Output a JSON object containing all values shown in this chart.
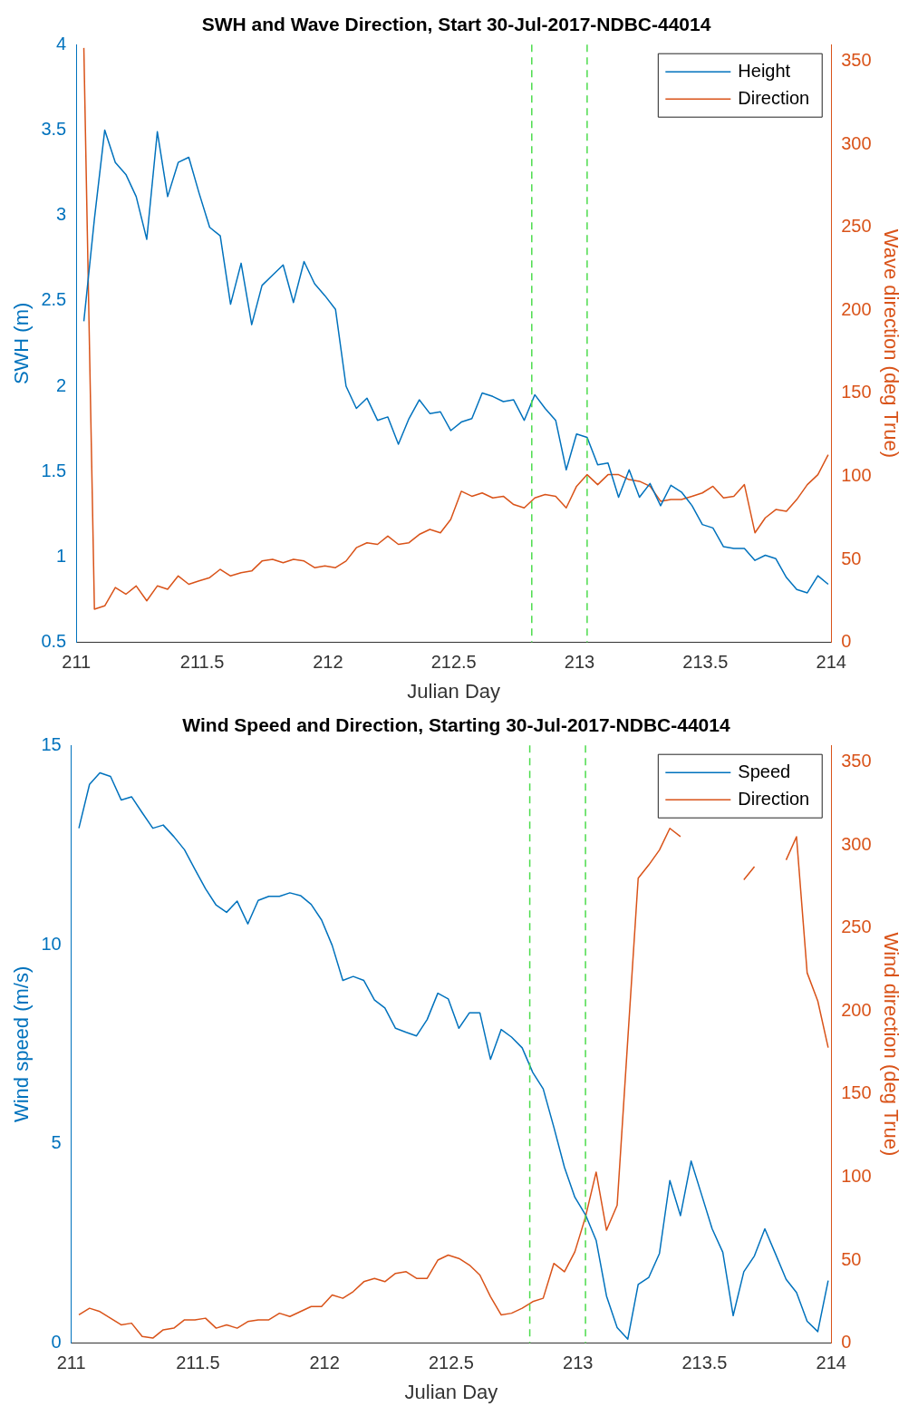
{
  "chart_data": [
    {
      "type": "line",
      "title": "SWH and Wave Direction, Start 30-Jul-2017-NDBC-44014",
      "xlabel": "Julian Day",
      "ylabel": "SWH (m)",
      "y2label": "Wave direction (deg True)",
      "x": [
        211.03,
        211.072,
        211.113,
        211.155,
        211.197,
        211.238,
        211.28,
        211.322,
        211.363,
        211.405,
        211.447,
        211.488,
        211.53,
        211.572,
        211.613,
        211.655,
        211.697,
        211.738,
        211.78,
        211.822,
        211.863,
        211.905,
        211.947,
        211.988,
        212.03,
        212.072,
        212.113,
        212.155,
        212.197,
        212.238,
        212.28,
        212.322,
        212.363,
        212.405,
        212.447,
        212.488,
        212.53,
        212.572,
        212.613,
        212.655,
        212.697,
        212.738,
        212.78,
        212.822,
        212.863,
        212.905,
        212.947,
        212.988,
        213.03,
        213.072,
        213.113,
        213.155,
        213.197,
        213.238,
        213.28,
        213.322,
        213.363,
        213.405,
        213.447,
        213.488,
        213.53,
        213.572,
        213.613,
        213.655,
        213.697,
        213.738,
        213.78,
        213.822,
        213.863,
        213.905,
        213.947,
        213.988
      ],
      "series": [
        {
          "name": "Height",
          "color": "#0072bd",
          "values": [
            2.38,
            2.98,
            3.5,
            3.31,
            3.24,
            3.11,
            2.86,
            3.49,
            3.11,
            3.31,
            3.34,
            3.13,
            2.93,
            2.88,
            2.48,
            2.72,
            2.36,
            2.59,
            2.65,
            2.71,
            2.49,
            2.73,
            2.6,
            2.53,
            2.45,
            2.0,
            1.87,
            1.93,
            1.8,
            1.82,
            1.66,
            1.81,
            1.92,
            1.84,
            1.85,
            1.74,
            1.79,
            1.81,
            1.96,
            1.94,
            1.91,
            1.92,
            1.8,
            1.95,
            1.87,
            1.8,
            1.51,
            1.72,
            1.7,
            1.54,
            1.55,
            1.35,
            1.51,
            1.35,
            1.43,
            1.3,
            1.42,
            1.38,
            1.3,
            1.19,
            1.17,
            1.06,
            1.05,
            1.05,
            0.98,
            1.01,
            0.99,
            0.88,
            0.81,
            0.79,
            0.89,
            0.84
          ]
        },
        {
          "name": "Direction",
          "color": "#d95319",
          "axis": "y2",
          "values": [
            358,
            20,
            22,
            33,
            29,
            34,
            25,
            34,
            32,
            40,
            35,
            37,
            39,
            44,
            40,
            42,
            43,
            49,
            50,
            48,
            50,
            49,
            45,
            46,
            45,
            49,
            57,
            60,
            59,
            64,
            59,
            60,
            65,
            68,
            66,
            74,
            91,
            88,
            90,
            87,
            88,
            83,
            81,
            87,
            89,
            88,
            81,
            94,
            101,
            95,
            101,
            101,
            98,
            97,
            94,
            85,
            86,
            86,
            88,
            90,
            94,
            87,
            88,
            95,
            66,
            75,
            80,
            79,
            86,
            95,
            101,
            113
          ]
        }
      ],
      "xlim": [
        211,
        214
      ],
      "xticks": [
        211,
        211.5,
        212,
        212.5,
        213,
        213.5,
        214
      ],
      "ylim": [
        0.5,
        4
      ],
      "yticks": [
        0.5,
        1,
        1.5,
        2,
        2.5,
        3,
        3.5,
        4
      ],
      "y2lim": [
        0,
        360
      ],
      "y2ticks": [
        0,
        50,
        100,
        150,
        200,
        250,
        300,
        350
      ],
      "ref_lines": [
        {
          "axis": "x",
          "value": 212.81,
          "color": "#4ddc4d",
          "line_style": "dashed"
        },
        {
          "axis": "x",
          "value": 213.03,
          "color": "#4ddc4d",
          "line_style": "dashed"
        }
      ],
      "grid": false,
      "legend": "top right",
      "marker": "none",
      "line_style": "solid"
    },
    {
      "type": "line",
      "title": "Wind Speed and Direction, Starting 30-Jul-2017-NDBC-44014",
      "xlabel": "Julian Day",
      "ylabel": "Wind speed (m/s)",
      "y2label": "Wind direction (deg True)",
      "x": [
        211.03,
        211.072,
        211.113,
        211.155,
        211.197,
        211.238,
        211.28,
        211.322,
        211.363,
        211.405,
        211.447,
        211.488,
        211.53,
        211.572,
        211.613,
        211.655,
        211.697,
        211.738,
        211.78,
        211.822,
        211.863,
        211.905,
        211.947,
        211.988,
        212.03,
        212.072,
        212.113,
        212.155,
        212.197,
        212.238,
        212.28,
        212.322,
        212.363,
        212.405,
        212.447,
        212.488,
        212.53,
        212.572,
        212.613,
        212.655,
        212.697,
        212.738,
        212.78,
        212.822,
        212.863,
        212.905,
        212.947,
        212.988,
        213.03,
        213.072,
        213.113,
        213.155,
        213.197,
        213.238,
        213.28,
        213.322,
        213.363,
        213.405,
        213.447,
        213.488,
        213.53,
        213.572,
        213.613,
        213.655,
        213.697,
        213.738,
        213.78,
        213.822,
        213.863,
        213.905,
        213.947,
        213.988
      ],
      "series": [
        {
          "name": "Speed",
          "color": "#0072bd",
          "values": [
            12.92,
            14.02,
            14.31,
            14.22,
            13.63,
            13.71,
            13.31,
            12.92,
            13.0,
            12.71,
            12.38,
            11.89,
            11.4,
            10.99,
            10.81,
            11.09,
            10.52,
            11.11,
            11.21,
            11.21,
            11.3,
            11.23,
            11.01,
            10.62,
            9.98,
            9.1,
            9.2,
            9.1,
            8.61,
            8.41,
            7.9,
            7.8,
            7.71,
            8.12,
            8.78,
            8.64,
            7.9,
            8.29,
            8.29,
            7.12,
            7.87,
            7.68,
            7.41,
            6.79,
            6.38,
            5.42,
            4.41,
            3.66,
            3.22,
            2.58,
            1.18,
            0.39,
            0.1,
            1.47,
            1.65,
            2.25,
            4.08,
            3.2,
            4.57,
            3.73,
            2.87,
            2.28,
            0.69,
            1.79,
            2.19,
            2.87,
            2.24,
            1.6,
            1.27,
            0.55,
            0.29,
            1.57
          ]
        },
        {
          "name": "Direction",
          "color": "#d95319",
          "axis": "y2",
          "values": [
            17,
            21,
            19,
            15,
            11,
            12,
            4,
            3,
            8,
            9,
            14,
            14,
            15,
            9,
            11,
            9,
            13,
            14,
            14,
            18,
            16,
            19,
            22,
            22,
            29,
            27,
            31,
            37,
            39,
            37,
            42,
            43,
            39,
            39,
            50,
            53,
            51,
            47,
            41,
            28,
            17,
            18,
            21,
            25,
            27,
            48,
            43,
            55,
            76,
            103,
            68,
            83,
            183,
            280,
            288,
            297,
            310,
            305,
            null,
            null,
            null,
            null,
            null,
            279,
            287,
            null,
            null,
            291,
            305,
            223,
            206,
            178
          ]
        }
      ],
      "xlim": [
        211,
        214
      ],
      "xticks": [
        211,
        211.5,
        212,
        212.5,
        213,
        213.5,
        214
      ],
      "ylim": [
        0,
        15
      ],
      "yticks": [
        0,
        5,
        10,
        15
      ],
      "y2lim": [
        0,
        360
      ],
      "y2ticks": [
        0,
        50,
        100,
        150,
        200,
        250,
        300,
        350
      ],
      "ref_lines": [
        {
          "axis": "x",
          "value": 212.81,
          "color": "#4ddc4d",
          "line_style": "dashed"
        },
        {
          "axis": "x",
          "value": 213.03,
          "color": "#4ddc4d",
          "line_style": "dashed"
        }
      ],
      "grid": false,
      "legend": "top right",
      "marker": "none",
      "line_style": "solid"
    }
  ]
}
